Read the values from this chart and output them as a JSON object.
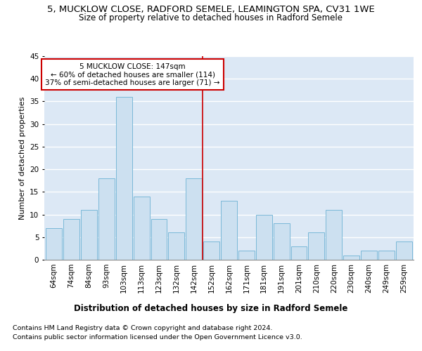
{
  "title1": "5, MUCKLOW CLOSE, RADFORD SEMELE, LEAMINGTON SPA, CV31 1WE",
  "title2": "Size of property relative to detached houses in Radford Semele",
  "xlabel": "Distribution of detached houses by size in Radford Semele",
  "ylabel": "Number of detached properties",
  "footer1": "Contains HM Land Registry data © Crown copyright and database right 2024.",
  "footer2": "Contains public sector information licensed under the Open Government Licence v3.0.",
  "bar_labels": [
    "64sqm",
    "74sqm",
    "84sqm",
    "93sqm",
    "103sqm",
    "113sqm",
    "123sqm",
    "132sqm",
    "142sqm",
    "152sqm",
    "162sqm",
    "171sqm",
    "181sqm",
    "191sqm",
    "201sqm",
    "210sqm",
    "220sqm",
    "230sqm",
    "240sqm",
    "249sqm",
    "259sqm"
  ],
  "bar_values": [
    7,
    9,
    11,
    18,
    36,
    14,
    9,
    6,
    18,
    4,
    13,
    2,
    10,
    8,
    3,
    6,
    11,
    1,
    2,
    2,
    4
  ],
  "bar_color": "#cce0f0",
  "bar_edge_color": "#7ab8d8",
  "property_line_x": 8.5,
  "annotation_text": "5 MUCKLOW CLOSE: 147sqm\n← 60% of detached houses are smaller (114)\n37% of semi-detached houses are larger (71) →",
  "annotation_box_color": "#ffffff",
  "annotation_box_edge_color": "#cc0000",
  "vline_color": "#cc0000",
  "ylim": [
    0,
    45
  ],
  "yticks": [
    0,
    5,
    10,
    15,
    20,
    25,
    30,
    35,
    40,
    45
  ],
  "bg_color": "#dce8f5",
  "title1_fontsize": 9.5,
  "title2_fontsize": 8.5,
  "tick_fontsize": 7.5,
  "ylabel_fontsize": 8,
  "xlabel_fontsize": 8.5,
  "annotation_fontsize": 7.5,
  "footer_fontsize": 6.8
}
